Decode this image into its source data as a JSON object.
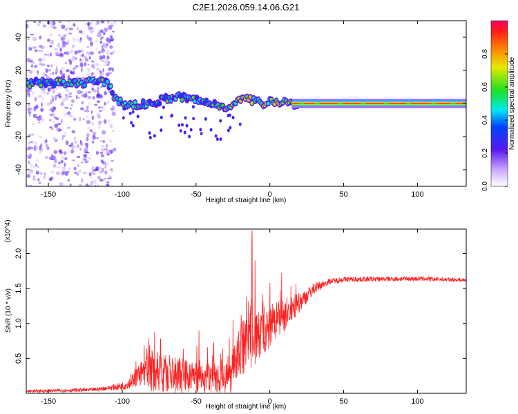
{
  "figure_title": "C2E1.2026.059.14.06.G21",
  "colors": {
    "signal": "#ff2020",
    "axis": "#000000"
  },
  "chart_data": [
    {
      "type": "heatmap",
      "title": "C2E1.2026.059.14.06.G21",
      "xlabel": "Height of straight line (km)",
      "ylabel": "Frequency (Hz)",
      "xlim": [
        -165,
        133
      ],
      "ylim": [
        -50,
        50
      ],
      "xticks": [
        -150,
        -100,
        -50,
        0,
        50,
        100
      ],
      "xtick_labels": [
        "-150",
        "-100",
        "-50",
        "0",
        "50",
        "100"
      ],
      "yticks": [
        -40,
        -20,
        0,
        20,
        40
      ],
      "ytick_labels": [
        "-40",
        "-20",
        "0",
        "20",
        "40"
      ],
      "colorbar": {
        "label": "Normalized spectral amplitude",
        "range": [
          0,
          1
        ],
        "ticks": [
          0,
          0.2,
          0.4,
          0.6,
          0.8
        ],
        "tick_labels": [
          "0.0",
          "0.2",
          "0.4",
          "0.6",
          "0.8"
        ]
      },
      "ridge_frequency_hz": {
        "x": [
          -165,
          -150,
          -140,
          -130,
          -120,
          -110,
          -105,
          -100,
          -90,
          -80,
          -70,
          -60,
          -50,
          -40,
          -30,
          -25,
          -20,
          -15,
          -10,
          -5,
          0,
          5,
          10,
          15,
          20,
          50,
          100,
          133
        ],
        "y": [
          12,
          13,
          12,
          12,
          14,
          12,
          4,
          0,
          -1,
          0,
          3,
          4,
          2,
          0,
          -2,
          0,
          2,
          3,
          1,
          0,
          2,
          1,
          1,
          0,
          0,
          0,
          0,
          0
        ]
      }
    },
    {
      "type": "line",
      "xlabel": "Height of straight line (km)",
      "ylabel": "SNR (10 * v/v)",
      "y_multiplier": "(x10^4)",
      "xlim": [
        -165,
        133
      ],
      "ylim": [
        0,
        2.35
      ],
      "xticks": [
        -150,
        -100,
        -50,
        0,
        50,
        100
      ],
      "xtick_labels": [
        "-150",
        "-100",
        "-50",
        "0",
        "50",
        "100"
      ],
      "yticks": [
        0.5,
        1.0,
        1.5,
        2.0
      ],
      "ytick_labels": [
        "0.5",
        "1.0",
        "1.5",
        "2.0"
      ],
      "envelope": {
        "x": [
          -165,
          -120,
          -100,
          -95,
          -90,
          -85,
          -80,
          -75,
          -70,
          -60,
          -50,
          -40,
          -30,
          -25,
          -22,
          -20,
          -15,
          -12,
          -10,
          -5,
          0,
          5,
          10,
          20,
          30,
          40,
          50,
          100,
          133
        ],
        "y": [
          0.03,
          0.05,
          0.1,
          0.15,
          0.25,
          0.3,
          0.32,
          0.3,
          0.28,
          0.25,
          0.23,
          0.22,
          0.22,
          0.25,
          0.55,
          0.62,
          0.8,
          0.9,
          0.78,
          0.85,
          0.9,
          1.05,
          1.1,
          1.3,
          1.5,
          1.6,
          1.63,
          1.64,
          1.62
        ]
      },
      "noise_amplitude": {
        "x": [
          -165,
          -110,
          -95,
          -90,
          -85,
          -80,
          -70,
          -60,
          -50,
          -40,
          -30,
          -25,
          -22,
          -20,
          -15,
          -12,
          -10,
          0,
          10,
          20,
          30,
          40,
          133
        ],
        "y": [
          0.02,
          0.03,
          0.08,
          0.15,
          0.2,
          0.3,
          0.28,
          0.25,
          0.22,
          0.22,
          0.3,
          0.35,
          0.3,
          0.4,
          0.5,
          0.6,
          0.4,
          0.3,
          0.25,
          0.15,
          0.08,
          0.04,
          0.03
        ]
      },
      "spikes": [
        {
          "x": -78,
          "y": 0.88
        },
        {
          "x": -74,
          "y": 0.78
        },
        {
          "x": -48,
          "y": 0.9
        },
        {
          "x": -38,
          "y": 0.72
        },
        {
          "x": -25,
          "y": 1.05
        },
        {
          "x": -16,
          "y": 1.38
        },
        {
          "x": -12,
          "y": 2.33
        },
        {
          "x": -10,
          "y": 1.9
        },
        {
          "x": -5,
          "y": 1.42
        },
        {
          "x": 0,
          "y": 1.58
        },
        {
          "x": 8,
          "y": 1.72
        }
      ]
    }
  ]
}
